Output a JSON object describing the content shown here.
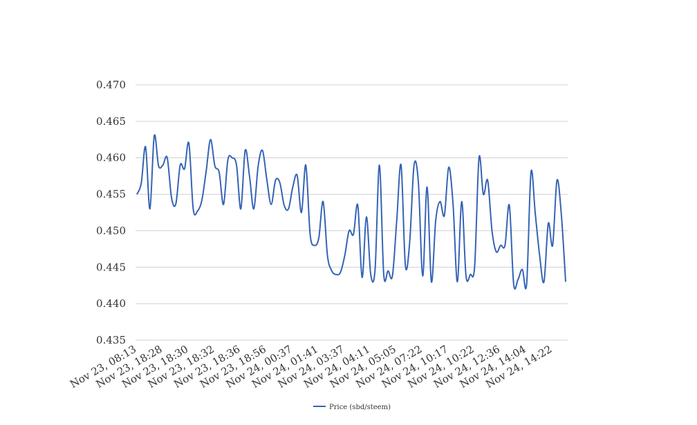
{
  "chart_data": {
    "type": "line",
    "categories": [
      "Nov 23, 08:13",
      null,
      null,
      null,
      null,
      null,
      "Nov 23, 18:28",
      null,
      null,
      null,
      null,
      null,
      "Nov 23, 18:30",
      null,
      null,
      null,
      null,
      null,
      "Nov 23, 18:32",
      null,
      null,
      null,
      null,
      null,
      "Nov 23, 18:36",
      null,
      null,
      null,
      null,
      null,
      "Nov 23, 18:56",
      null,
      null,
      null,
      null,
      null,
      "Nov 24, 00:37",
      null,
      null,
      null,
      null,
      null,
      "Nov 24, 01:41",
      null,
      null,
      null,
      null,
      null,
      "Nov 24, 03:37",
      null,
      null,
      null,
      null,
      null,
      "Nov 24, 04:11",
      null,
      null,
      null,
      null,
      null,
      "Nov 24, 05:05",
      null,
      null,
      null,
      null,
      null,
      "Nov 24, 07:22",
      null,
      null,
      null,
      null,
      null,
      "Nov 24, 10:17",
      null,
      null,
      null,
      null,
      null,
      "Nov 24, 10:22",
      null,
      null,
      null,
      null,
      null,
      "Nov 24, 12:36",
      null,
      null,
      null,
      null,
      null,
      "Nov 24, 14:04",
      null,
      null,
      null,
      null,
      null,
      "Nov 24, 14:22",
      null,
      null,
      null
    ],
    "series": [
      {
        "name": "Price (sbd/steem)",
        "color": "#3563b5",
        "values": [
          0.455,
          0.4565,
          0.4615,
          0.453,
          0.463,
          0.4589,
          0.459,
          0.46,
          0.4545,
          0.4537,
          0.459,
          0.4585,
          0.462,
          0.453,
          0.4527,
          0.4542,
          0.4582,
          0.4625,
          0.4589,
          0.458,
          0.4536,
          0.4597,
          0.46,
          0.459,
          0.453,
          0.461,
          0.4575,
          0.453,
          0.4589,
          0.461,
          0.457,
          0.4536,
          0.4569,
          0.4566,
          0.4535,
          0.453,
          0.456,
          0.4576,
          0.4525,
          0.459,
          0.4495,
          0.448,
          0.449,
          0.454,
          0.4466,
          0.4445,
          0.444,
          0.4443,
          0.4466,
          0.45,
          0.4495,
          0.4535,
          0.4436,
          0.4519,
          0.444,
          0.4447,
          0.459,
          0.444,
          0.4445,
          0.4438,
          0.4514,
          0.459,
          0.4452,
          0.4485,
          0.459,
          0.4566,
          0.4438,
          0.456,
          0.443,
          0.4514,
          0.454,
          0.4521,
          0.4587,
          0.4537,
          0.443,
          0.454,
          0.4438,
          0.444,
          0.4452,
          0.46,
          0.455,
          0.4569,
          0.45,
          0.4471,
          0.448,
          0.448,
          0.4535,
          0.4427,
          0.4433,
          0.4447,
          0.4427,
          0.458,
          0.4523,
          0.4466,
          0.443,
          0.451,
          0.448,
          0.4569,
          0.4523,
          0.443
        ]
      }
    ],
    "ylim": [
      0.435,
      0.47
    ],
    "yticks": [
      {
        "value": 0.435,
        "label": "0.435"
      },
      {
        "value": 0.44,
        "label": "0.440"
      },
      {
        "value": 0.445,
        "label": "0.445"
      },
      {
        "value": 0.45,
        "label": "0.450"
      },
      {
        "value": 0.455,
        "label": "0.455"
      },
      {
        "value": 0.46,
        "label": "0.460"
      },
      {
        "value": 0.465,
        "label": "0.465"
      },
      {
        "value": 0.47,
        "label": "0.470"
      }
    ],
    "grid": true,
    "legend": "bottom"
  }
}
